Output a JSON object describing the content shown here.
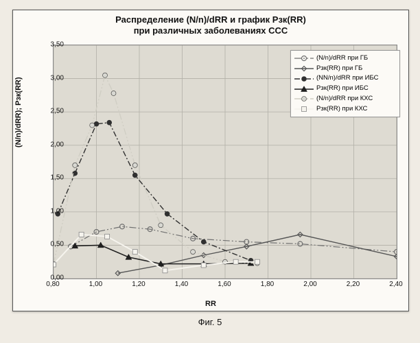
{
  "chart": {
    "type": "line-scatter",
    "title_line1": "Распределение (N/n)/dRR и график Рзк(RR)",
    "title_line2": "при различных заболеваниях ССС",
    "title_fontsize": 13,
    "xlabel": "RR",
    "ylabel": "(N/n)/dRR); Рзк(RR)",
    "label_fontsize": 11,
    "xlim": [
      0.8,
      2.4
    ],
    "ylim": [
      0.0,
      3.5
    ],
    "xtick_step": 0.2,
    "ytick_step": 0.5,
    "decimal_separator": ",",
    "x_decimals": 2,
    "y_decimals": 2,
    "background_color": "#fcfaf6",
    "plot_background_color": "#dedbd2",
    "grid_color": "#b2afa7",
    "frame_color": "#888888",
    "tick_font_size": 10,
    "caption": "Фиг. 5",
    "series": [
      {
        "key": "s1",
        "label": "(N/n)/dRR  при ГБ",
        "marker": "circle-open",
        "marker_color": "#707070",
        "line_color": "#707070",
        "line_width": 1.2,
        "dash": "long-dot-dot",
        "points": [
          [
            0.88,
            0.48
          ],
          [
            1.0,
            0.7
          ],
          [
            1.12,
            0.78
          ],
          [
            1.25,
            0.74
          ],
          [
            1.45,
            0.6
          ],
          [
            1.7,
            0.55
          ],
          [
            1.95,
            0.52
          ],
          [
            2.4,
            0.4
          ]
        ]
      },
      {
        "key": "s2",
        "label": "Рзк(RR) при ГБ",
        "marker": "diamond-open",
        "marker_color": "#555555",
        "line_color": "#555555",
        "line_width": 1.4,
        "dash": "solid",
        "points": [
          [
            1.1,
            0.08
          ],
          [
            1.3,
            0.2
          ],
          [
            1.5,
            0.35
          ],
          [
            1.7,
            0.48
          ],
          [
            1.95,
            0.66
          ],
          [
            2.4,
            0.33
          ]
        ]
      },
      {
        "key": "s3",
        "label": "(NN/n)/dRR при ИБС",
        "marker": "circle-solid",
        "marker_color": "#303030",
        "line_color": "#303030",
        "line_width": 1.4,
        "dash": "dash-dot",
        "points": [
          [
            0.82,
            0.97
          ],
          [
            0.9,
            1.58
          ],
          [
            1.0,
            2.32
          ],
          [
            1.06,
            2.34
          ],
          [
            1.18,
            1.55
          ],
          [
            1.33,
            0.97
          ],
          [
            1.5,
            0.55
          ],
          [
            1.72,
            0.27
          ]
        ]
      },
      {
        "key": "s4",
        "label": "Рзк(RR) при ИБС",
        "marker": "triangle-solid",
        "marker_color": "#202020",
        "line_color": "#202020",
        "line_width": 1.6,
        "dash": "solid",
        "points": [
          [
            0.9,
            0.49
          ],
          [
            1.02,
            0.5
          ],
          [
            1.15,
            0.32
          ],
          [
            1.3,
            0.22
          ],
          [
            1.5,
            0.22
          ],
          [
            1.72,
            0.23
          ]
        ]
      },
      {
        "key": "s5",
        "label": "(N/n)/dRR при КХС",
        "marker": "circle-solid",
        "marker_color": "#d8d8d2",
        "line_color": "#d0cec4",
        "line_width": 1.4,
        "dash": "long-dot-dot",
        "points": [
          [
            0.8,
            0.22
          ],
          [
            0.9,
            1.7
          ],
          [
            0.98,
            2.3
          ],
          [
            1.04,
            3.05
          ],
          [
            1.08,
            2.78
          ],
          [
            1.18,
            1.7
          ],
          [
            1.3,
            0.8
          ],
          [
            1.45,
            0.4
          ],
          [
            1.6,
            0.25
          ],
          [
            1.75,
            0.23
          ]
        ]
      },
      {
        "key": "s6",
        "label": "Рзк(RR) при КХС",
        "marker": "square-solid",
        "marker_color": "#f6f4ee",
        "line_color": "#f6f4ee",
        "line_width": 2.0,
        "dash": "solid",
        "points": [
          [
            0.8,
            0.21
          ],
          [
            0.93,
            0.66
          ],
          [
            1.05,
            0.63
          ],
          [
            1.18,
            0.4
          ],
          [
            1.32,
            0.12
          ],
          [
            1.5,
            0.2
          ],
          [
            1.65,
            0.25
          ],
          [
            1.75,
            0.25
          ]
        ]
      }
    ],
    "legend": {
      "position": "top-right-inside",
      "background": "#fcfaf6",
      "border_color": "#999999",
      "fontsize": 9.5
    }
  }
}
